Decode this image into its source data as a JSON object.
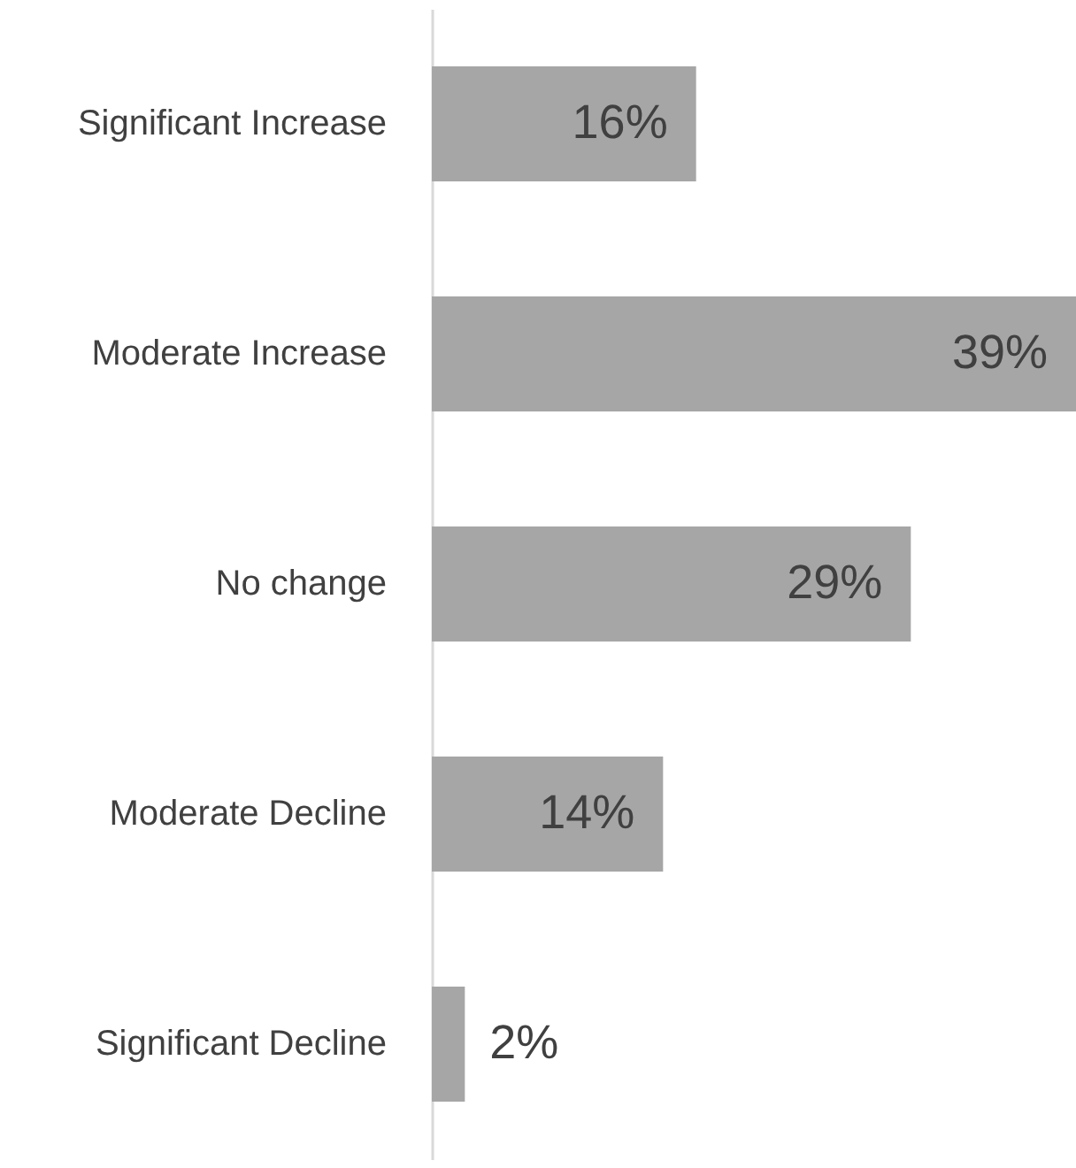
{
  "chart_data": {
    "type": "bar",
    "orientation": "horizontal",
    "categories": [
      "Significant Increase",
      "Moderate Increase",
      "No change",
      "Moderate Decline",
      "Significant Decline"
    ],
    "values": [
      16,
      39,
      29,
      14,
      2
    ],
    "value_labels": [
      "16%",
      "39%",
      "29%",
      "14%",
      "2%"
    ],
    "color": "#a6a6a6",
    "tick_labels": "y"
  }
}
